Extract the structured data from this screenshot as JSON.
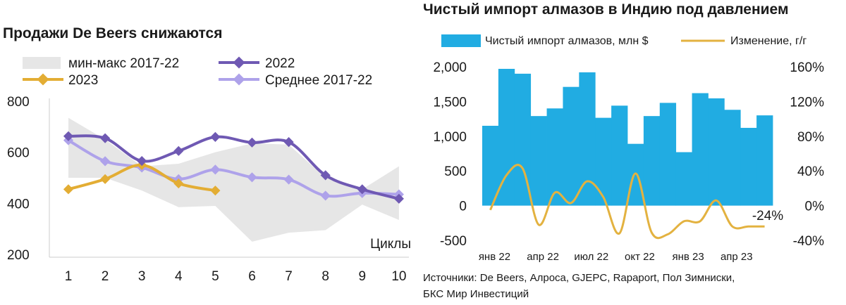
{
  "colors": {
    "range_fill": "#e6e6e6",
    "series_2022": "#6f59b3",
    "series_2023": "#e3ad34",
    "series_avg": "#aea2ea",
    "bars": "#21ace2",
    "yoy_line": "#e3b240",
    "annotation": "#c09230"
  },
  "chart_data": [
    {
      "type": "line",
      "title": "Продажи De Beers снижаются",
      "xlabel": "Циклы",
      "x": [
        1,
        2,
        3,
        4,
        5,
        6,
        7,
        8,
        9,
        10
      ],
      "x_tick_labels": [
        "1",
        "2",
        "3",
        "4",
        "5",
        "6",
        "7",
        "8",
        "9",
        "10"
      ],
      "ylim": [
        200,
        800
      ],
      "y_ticks": [
        200,
        400,
        600,
        800
      ],
      "y_tick_labels": [
        "200",
        "400",
        "600",
        "800"
      ],
      "grid": false,
      "legend": [
        "мин-макс 2017-22",
        "2022",
        "2023",
        "Среднее 2017-22"
      ],
      "range": {
        "name": "мин-макс 2017-22",
        "min": [
          500,
          500,
          450,
          385,
          390,
          250,
          285,
          295,
          395,
          335
        ],
        "max": [
          735,
          650,
          545,
          555,
          600,
          635,
          630,
          500,
          455,
          545
        ]
      },
      "series": [
        {
          "name": "2022",
          "values": [
            663,
            655,
            566,
            605,
            660,
            638,
            640,
            510,
            455,
            418
          ]
        },
        {
          "name": "2023",
          "values": [
            455,
            495,
            550,
            478,
            450,
            null,
            null,
            null,
            null,
            null
          ]
        },
        {
          "name": "Среднее 2017-22",
          "values": [
            647,
            565,
            540,
            495,
            532,
            502,
            493,
            430,
            440,
            435
          ]
        }
      ]
    },
    {
      "type": "bar+line",
      "title": "Чистый импорт алмазов в Индию под давлением",
      "x": [
        "янв 22",
        "фев 22",
        "мар 22",
        "апр 22",
        "май 22",
        "июн 22",
        "июл 22",
        "авг 22",
        "сен 22",
        "окт 22",
        "ноя 22",
        "дек 22",
        "янв 23",
        "фев 23",
        "мар 23",
        "апр 23",
        "май 23",
        "июн 23"
      ],
      "x_tick_labels": [
        "янв 22",
        "апр 22",
        "июл 22",
        "окт 22",
        "янв 23",
        "апр 23"
      ],
      "y_left": {
        "ylim": [
          -500,
          2000
        ],
        "ticks": [
          -500,
          0,
          500,
          1000,
          1500,
          2000
        ],
        "tick_labels": [
          "-500",
          "0",
          "500",
          "1,000",
          "1,500",
          "2,000"
        ]
      },
      "y_right": {
        "ylim": [
          -40,
          160
        ],
        "ticks": [
          -40,
          0,
          40,
          80,
          120,
          160
        ],
        "tick_labels": [
          "-40%",
          "0%",
          "40%",
          "80%",
          "120%",
          "160%"
        ]
      },
      "legend": [
        "Чистый импорт алмазов, млн $",
        "Изменение, г/г"
      ],
      "series": [
        {
          "name": "Чистый импорт алмазов, млн $",
          "type": "bar",
          "axis": "left",
          "values": [
            1150,
            1970,
            1900,
            1290,
            1400,
            1710,
            1920,
            1265,
            1440,
            890,
            1290,
            1480,
            770,
            1620,
            1545,
            1380,
            1120,
            1300
          ]
        },
        {
          "name": "Изменение, г/г",
          "type": "line",
          "axis": "right",
          "values": [
            -5,
            35,
            43,
            -22,
            15,
            3,
            28,
            10,
            -32,
            37,
            -31,
            -33,
            -18,
            -18,
            6,
            -24,
            -24,
            -24
          ]
        }
      ],
      "annotation": "-24%"
    }
  ],
  "sources": {
    "line1": "Источники: De Beers, Алроса, GJEPC, Rapaport, Пол Зимниски,",
    "line2": "БКС Мир Инвестиций"
  }
}
